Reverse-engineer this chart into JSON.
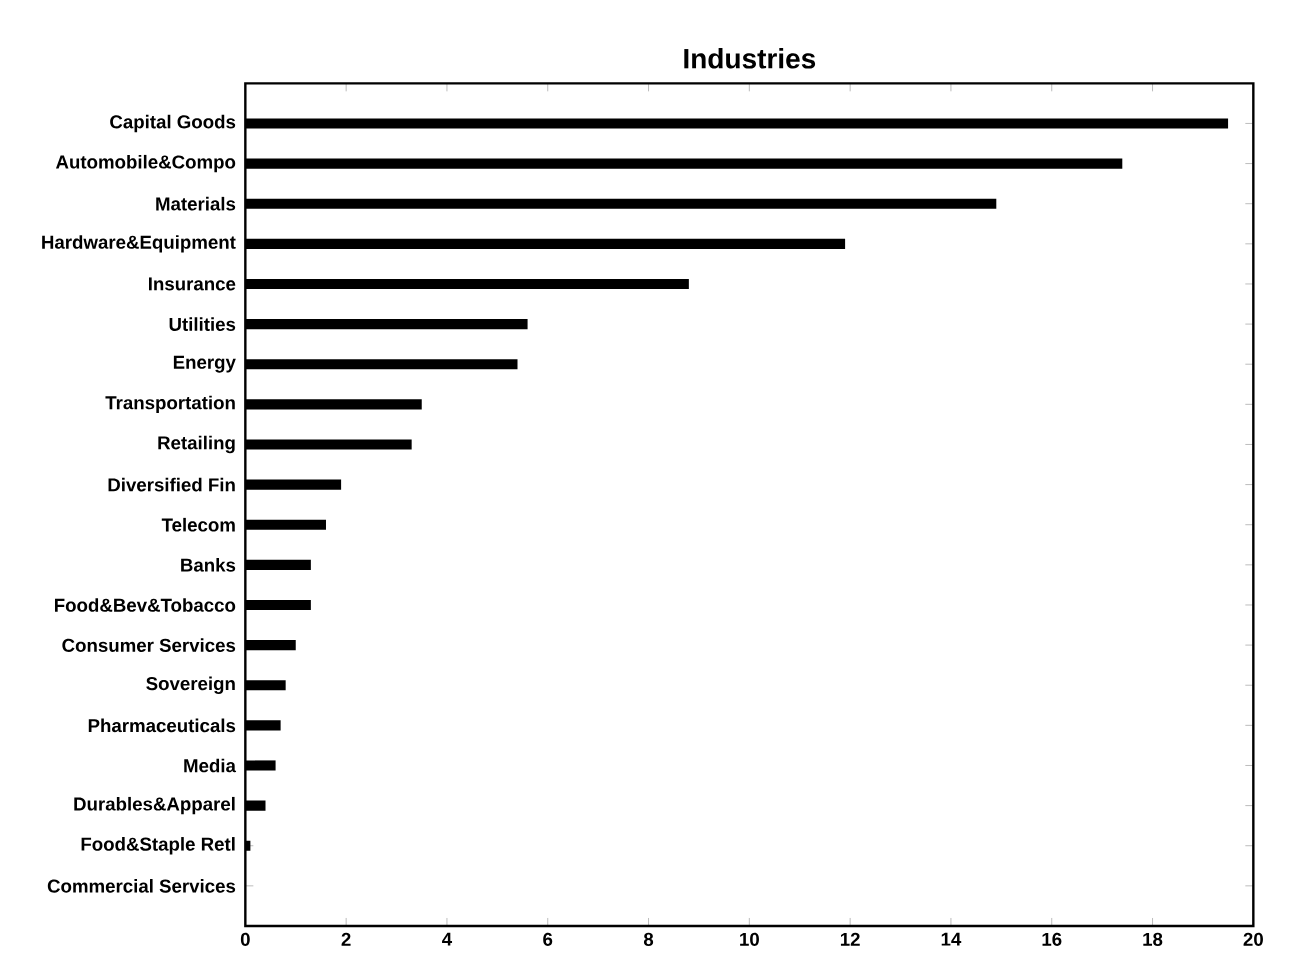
{
  "chart_data": {
    "type": "bar",
    "orientation": "horizontal",
    "title": "Industries",
    "categories": [
      "Capital Goods",
      "Automobile&Compo",
      "Materials",
      "Hardware&Equipment",
      "Insurance",
      "Utilities",
      "Energy",
      "Transportation",
      "Retailing",
      "Diversified Fin",
      "Telecom",
      "Banks",
      "Food&Bev&Tobacco",
      "Consumer Services",
      "Sovereign",
      "Pharmaceuticals",
      "Media",
      "Durables&Apparel",
      "Food&Staple Retl",
      "Commercial Services"
    ],
    "values": [
      19.5,
      17.4,
      14.9,
      11.9,
      8.8,
      5.6,
      5.4,
      3.5,
      3.3,
      1.9,
      1.6,
      1.3,
      1.3,
      1.0,
      0.8,
      0.7,
      0.6,
      0.4,
      0.1,
      0
    ],
    "color": "#000000",
    "xlim": [
      0,
      20
    ],
    "xticks": [
      0,
      2,
      4,
      6,
      8,
      10,
      12,
      14,
      16,
      18,
      20
    ]
  }
}
